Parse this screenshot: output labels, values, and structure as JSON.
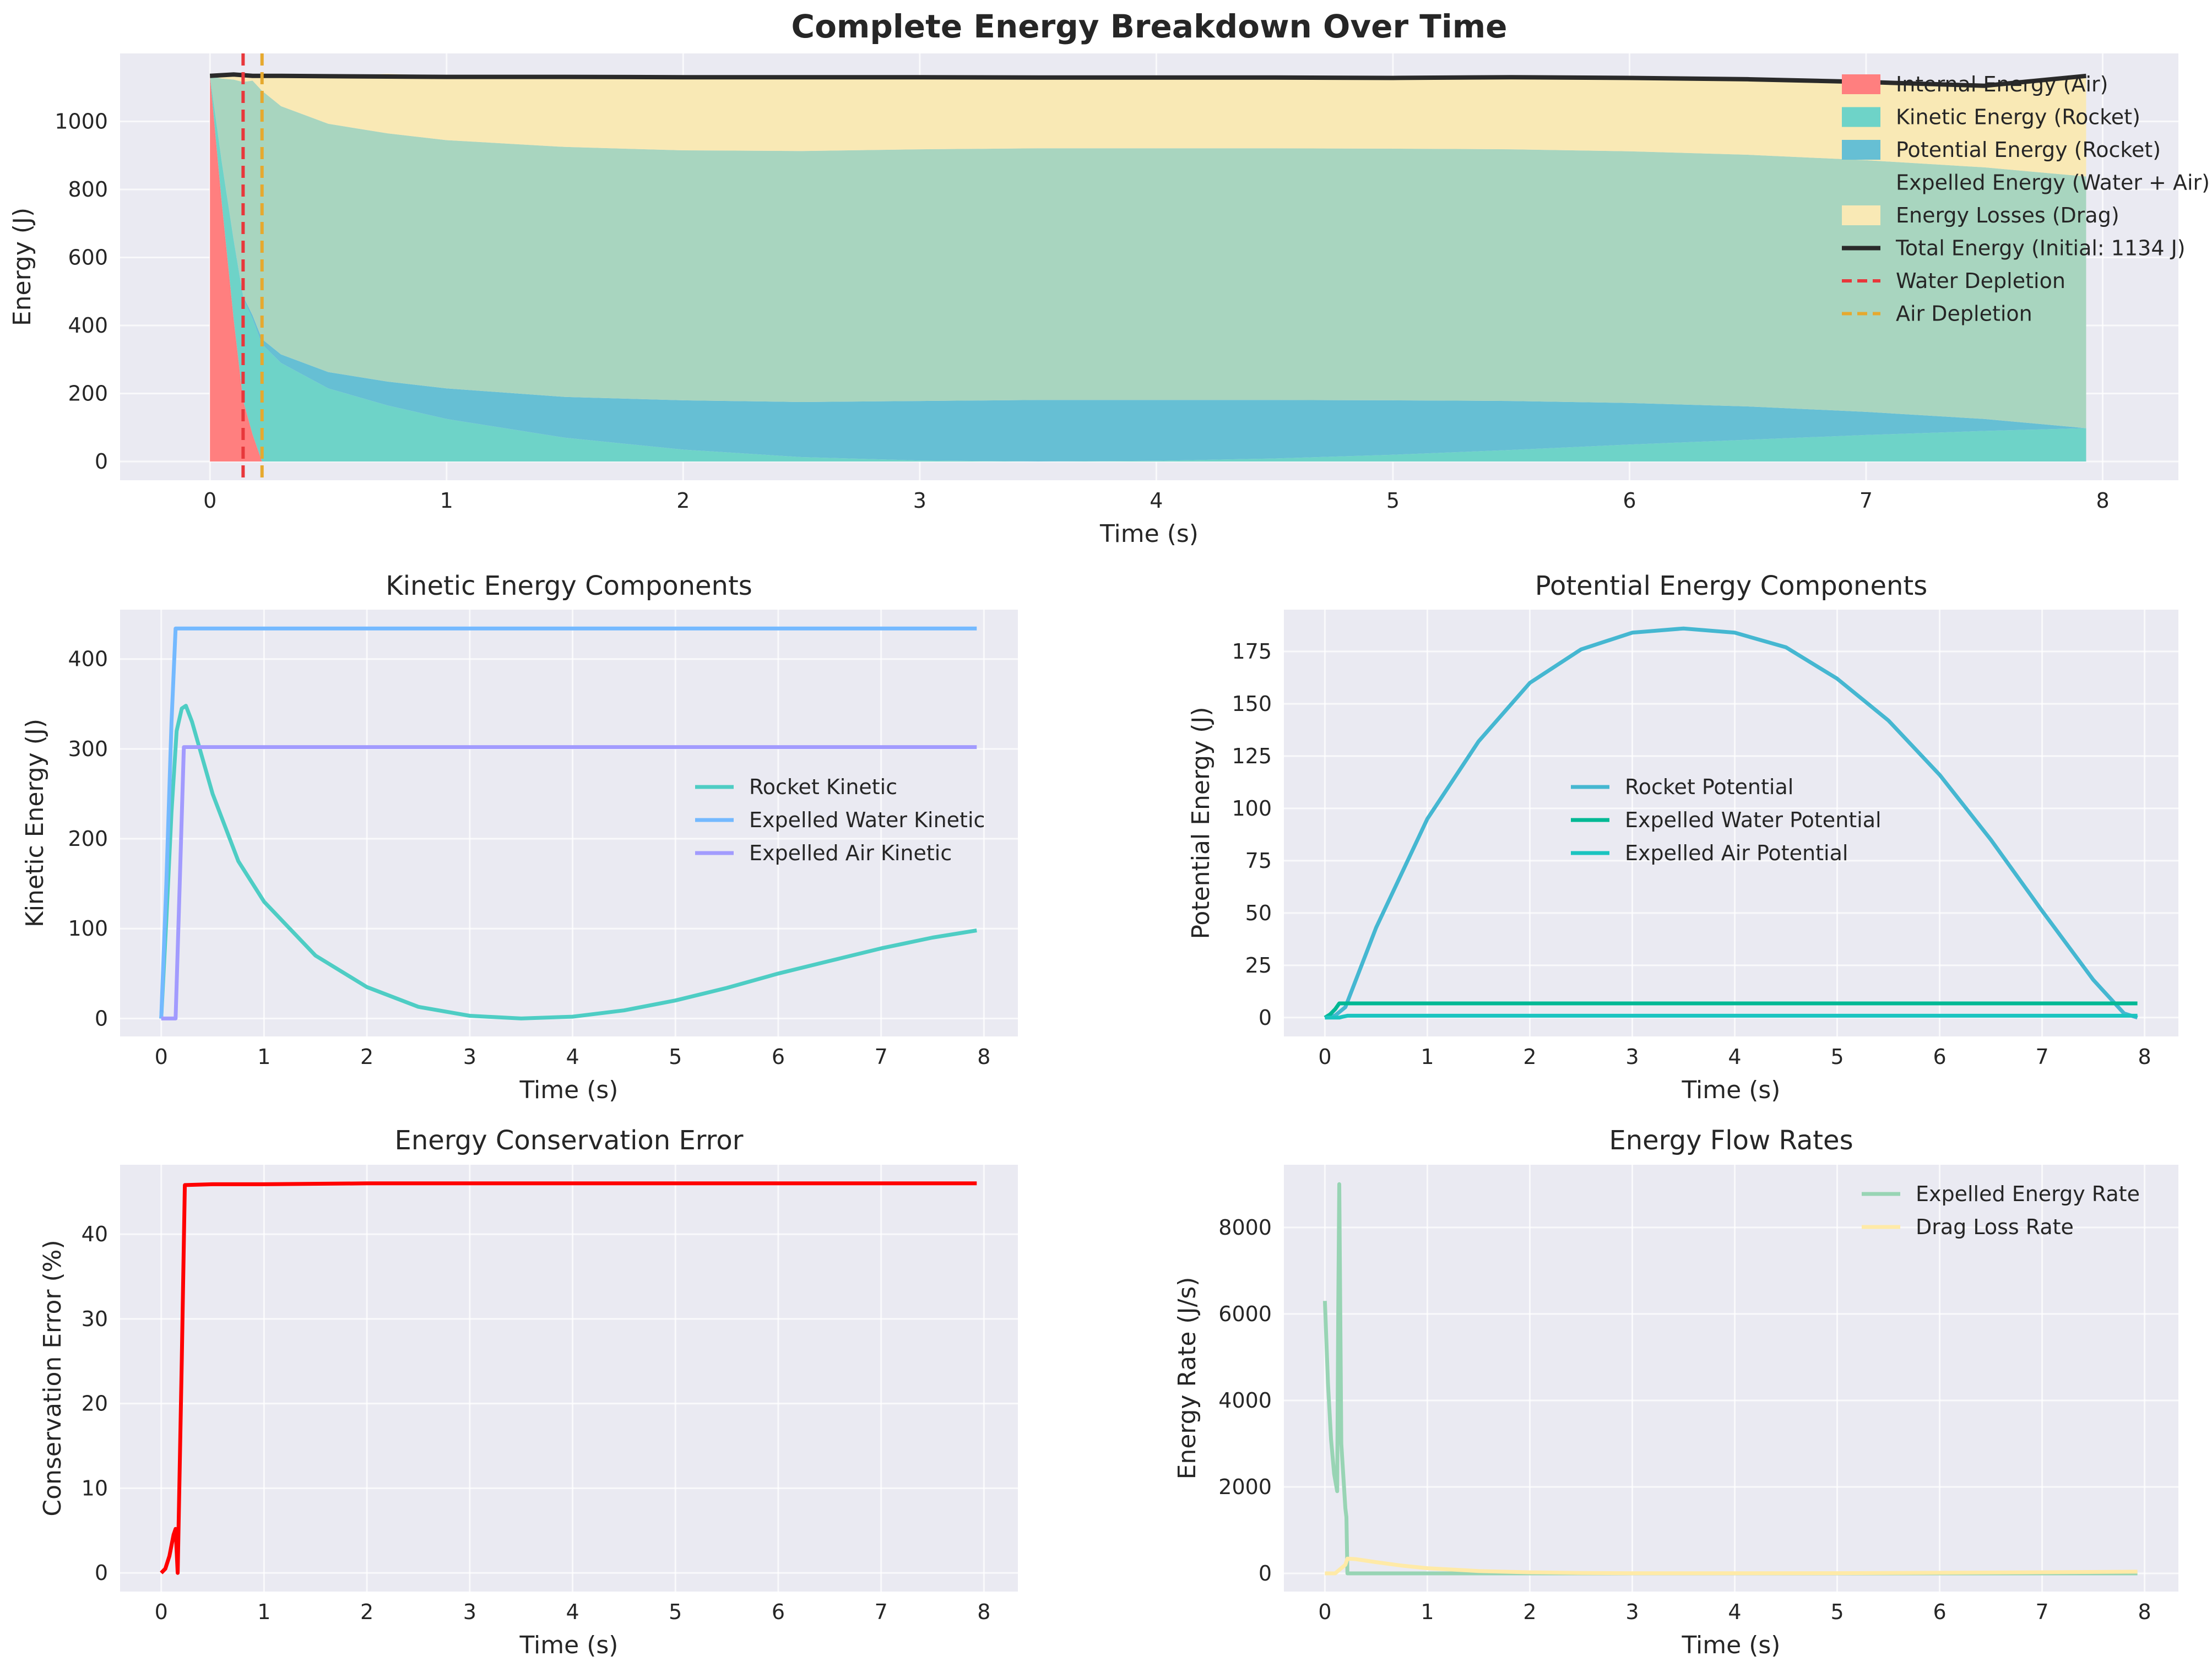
{
  "chart_data": [
    {
      "id": "energy_breakdown",
      "type": "area",
      "title": "Complete Energy Breakdown Over Time",
      "xlabel": "Time (s)",
      "ylabel": "Energy (J)",
      "xlim": [
        -0.38,
        8.32
      ],
      "ylim": [
        -55,
        1200
      ],
      "xticks": [
        0,
        1,
        2,
        3,
        4,
        5,
        6,
        7,
        8
      ],
      "yticks": [
        0,
        200,
        400,
        600,
        800,
        1000
      ],
      "grid": true,
      "legend": "top-right",
      "x": [
        0,
        0.05,
        0.1,
        0.14,
        0.18,
        0.22,
        0.3,
        0.5,
        0.75,
        1.0,
        1.5,
        2.0,
        2.5,
        3.0,
        3.5,
        4.0,
        4.5,
        5.0,
        5.5,
        6.0,
        6.5,
        7.0,
        7.5,
        7.93
      ],
      "series": [
        {
          "name": "Internal Energy (Air)",
          "color": "#ff7f7f",
          "values": [
            1134,
            760,
            420,
            180,
            80,
            0,
            0,
            0,
            0,
            0,
            0,
            0,
            0,
            0,
            0,
            0,
            0,
            0,
            0,
            0,
            0,
            0,
            0,
            0
          ]
        },
        {
          "name": "Kinetic Energy (Rocket)",
          "color": "#6ed3c8",
          "values": [
            0,
            120,
            230,
            300,
            340,
            345,
            290,
            215,
            165,
            125,
            70,
            35,
            13,
            3,
            0,
            2,
            9,
            20,
            34,
            50,
            64,
            78,
            90,
            98
          ]
        },
        {
          "name": "Potential Energy (Rocket)",
          "color": "#66bfd4",
          "values": [
            0,
            1,
            3,
            6,
            10,
            15,
            25,
            48,
            70,
            90,
            120,
            145,
            162,
            175,
            181,
            179,
            172,
            160,
            144,
            122,
            98,
            68,
            35,
            0
          ]
        },
        {
          "name": "Expelled Energy (Water + Air)",
          "color": "#a8d5bf",
          "values": [
            0,
            245,
            470,
            630,
            690,
            730,
            730,
            730,
            730,
            730,
            735,
            735,
            738,
            740,
            740,
            740,
            740,
            740,
            740,
            740,
            740,
            740,
            740,
            740
          ]
        },
        {
          "name": "Energy Losses (Drag)",
          "color": "#f9e9b5",
          "values": [
            0,
            8,
            11,
            18,
            14,
            40,
            85,
            140,
            175,
            189,
            206,
            215,
            217,
            212,
            208,
            210,
            210,
            208,
            212,
            216,
            222,
            230,
            240,
            296
          ]
        }
      ],
      "total_energy": {
        "name": "Total Energy (Initial: 1134 J)",
        "color": "#2a2a2a",
        "values": [
          1134,
          1136,
          1138,
          1136,
          1134,
          1134,
          1134,
          1133,
          1132,
          1131,
          1131,
          1130,
          1130,
          1130,
          1129,
          1129,
          1129,
          1128,
          1130,
          1128,
          1124,
          1116,
          1105,
          1134
        ]
      },
      "vlines": [
        {
          "name": "Water Depletion",
          "x": 0.14,
          "color": "#e8373b"
        },
        {
          "name": "Air Depletion",
          "x": 0.22,
          "color": "#e6a92e"
        }
      ]
    },
    {
      "id": "kinetic",
      "type": "line",
      "title": "Kinetic Energy Components",
      "xlabel": "Time (s)",
      "ylabel": "Kinetic Energy (J)",
      "xlim": [
        -0.4,
        8.33
      ],
      "ylim": [
        -20,
        455
      ],
      "xticks": [
        0,
        1,
        2,
        3,
        4,
        5,
        6,
        7,
        8
      ],
      "yticks": [
        0,
        100,
        200,
        300,
        400
      ],
      "grid": true,
      "legend": "center-right",
      "series": [
        {
          "name": "Rocket Kinetic",
          "color": "#4ecdc4",
          "x": [
            0,
            0.05,
            0.1,
            0.15,
            0.2,
            0.24,
            0.3,
            0.5,
            0.75,
            1.0,
            1.5,
            2.0,
            2.5,
            3.0,
            3.5,
            4.0,
            4.5,
            5.0,
            5.5,
            6.0,
            6.5,
            7.0,
            7.5,
            7.93
          ],
          "y": [
            0,
            110,
            230,
            320,
            345,
            348,
            330,
            250,
            175,
            130,
            70,
            35,
            13,
            3,
            0,
            2,
            9,
            20,
            34,
            50,
            64,
            78,
            90,
            98
          ]
        },
        {
          "name": "Expelled Water Kinetic",
          "color": "#74b9ff",
          "x": [
            0,
            0.05,
            0.1,
            0.14,
            0.2,
            1,
            2,
            3,
            4,
            5,
            6,
            7,
            7.93
          ],
          "y": [
            0,
            150,
            330,
            434,
            434,
            434,
            434,
            434,
            434,
            434,
            434,
            434,
            434
          ]
        },
        {
          "name": "Expelled Air Kinetic",
          "color": "#a29bfe",
          "x": [
            0,
            0.14,
            0.18,
            0.22,
            0.5,
            1,
            2,
            3,
            4,
            5,
            6,
            7,
            7.93
          ],
          "y": [
            0,
            0,
            150,
            302,
            302,
            302,
            302,
            302,
            302,
            302,
            302,
            302,
            302
          ]
        }
      ]
    },
    {
      "id": "potential",
      "type": "line",
      "title": "Potential Energy Components",
      "xlabel": "Time (s)",
      "ylabel": "Potential Energy (J)",
      "xlim": [
        -0.4,
        8.33
      ],
      "ylim": [
        -9,
        195
      ],
      "xticks": [
        0,
        1,
        2,
        3,
        4,
        5,
        6,
        7,
        8
      ],
      "yticks": [
        0,
        25,
        50,
        75,
        100,
        125,
        150,
        175
      ],
      "grid": true,
      "legend": "center",
      "series": [
        {
          "name": "Rocket Potential",
          "color": "#45b7d1",
          "x": [
            0,
            0.1,
            0.2,
            0.5,
            1.0,
            1.5,
            2.0,
            2.5,
            3.0,
            3.5,
            4.0,
            4.5,
            5.0,
            5.5,
            6.0,
            6.5,
            7.0,
            7.5,
            7.8,
            7.93
          ],
          "y": [
            0,
            1,
            5,
            43,
            95,
            132,
            160,
            176,
            184,
            186,
            184,
            177,
            162,
            142,
            116,
            85,
            51,
            18,
            2,
            0
          ]
        },
        {
          "name": "Expelled Water Potential",
          "color": "#00b894",
          "x": [
            0,
            0.05,
            0.1,
            0.14,
            0.5,
            1,
            2,
            3,
            4,
            5,
            6,
            7,
            7.93
          ],
          "y": [
            0,
            1.5,
            4,
            6.8,
            6.8,
            6.8,
            6.8,
            6.8,
            6.8,
            6.8,
            6.8,
            6.8,
            6.8
          ]
        },
        {
          "name": "Expelled Air Potential",
          "color": "#1bc4c0",
          "x": [
            0,
            0.14,
            0.18,
            0.22,
            0.5,
            1,
            2,
            3,
            4,
            5,
            6,
            7,
            7.93
          ],
          "y": [
            0,
            0,
            0.5,
            0.9,
            0.9,
            0.9,
            0.9,
            0.9,
            0.9,
            0.9,
            0.9,
            0.9,
            0.9
          ]
        }
      ]
    },
    {
      "id": "conservation",
      "type": "line",
      "title": "Energy Conservation Error",
      "xlabel": "Time (s)",
      "ylabel": "Conservation Error (%)",
      "xlim": [
        -0.4,
        8.33
      ],
      "ylim": [
        -2.2,
        48.2
      ],
      "xticks": [
        0,
        1,
        2,
        3,
        4,
        5,
        6,
        7,
        8
      ],
      "yticks": [
        0,
        10,
        20,
        30,
        40
      ],
      "grid": true,
      "series": [
        {
          "name": "",
          "color": "#ff0000",
          "x": [
            0,
            0.04,
            0.08,
            0.12,
            0.14,
            0.16,
            0.2,
            0.23,
            0.5,
            1,
            2,
            3,
            4,
            5,
            6,
            7,
            7.93
          ],
          "y": [
            0,
            0.5,
            2,
            4.5,
            5.2,
            0,
            25,
            45.8,
            45.9,
            45.9,
            46.0,
            46.0,
            46.0,
            46.0,
            46.0,
            46.0,
            46.0
          ]
        }
      ]
    },
    {
      "id": "flow_rates",
      "type": "line",
      "title": "Energy Flow Rates",
      "xlabel": "Time (s)",
      "ylabel": "Energy Rate (J/s)",
      "xlim": [
        -0.4,
        8.33
      ],
      "ylim": [
        -420,
        9450
      ],
      "xticks": [
        0,
        1,
        2,
        3,
        4,
        5,
        6,
        7,
        8
      ],
      "yticks": [
        0,
        2000,
        4000,
        6000,
        8000
      ],
      "grid": true,
      "legend": "top-right",
      "series": [
        {
          "name": "Expelled Energy Rate",
          "color": "#98d4b4",
          "x": [
            0,
            0.03,
            0.06,
            0.09,
            0.12,
            0.13,
            0.14,
            0.16,
            0.2,
            0.21,
            0.22,
            0.3,
            1,
            2,
            3,
            4,
            5,
            6,
            7,
            7.93
          ],
          "y": [
            6300,
            4400,
            3100,
            2300,
            1900,
            6000,
            9000,
            3000,
            1500,
            1300,
            0,
            0,
            0,
            0,
            0,
            0,
            0,
            0,
            0,
            0
          ]
        },
        {
          "name": "Drag Loss Rate",
          "color": "#ffeaa7",
          "x": [
            0,
            0.1,
            0.2,
            0.22,
            0.3,
            0.5,
            0.75,
            1.0,
            1.5,
            2.0,
            2.5,
            3,
            4,
            5,
            6,
            7,
            7.93
          ],
          "y": [
            0,
            0,
            200,
            340,
            330,
            260,
            180,
            120,
            55,
            25,
            10,
            4,
            3,
            6,
            14,
            26,
            40
          ]
        }
      ]
    }
  ]
}
